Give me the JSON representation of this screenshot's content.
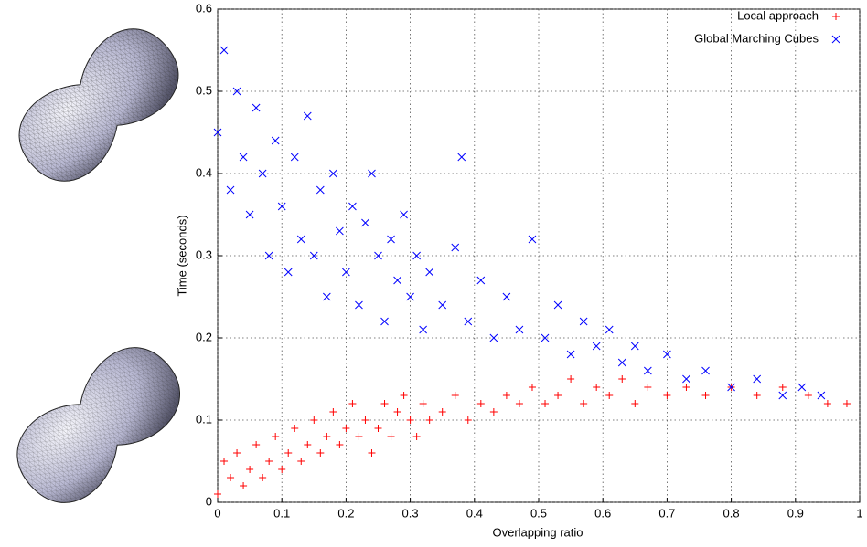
{
  "chart_data": {
    "type": "scatter",
    "xlabel": "Overlapping ratio",
    "ylabel": "Time (seconds)",
    "xlim": [
      0,
      1
    ],
    "ylim": [
      0,
      0.6
    ],
    "xticks": [
      0,
      0.1,
      0.2,
      0.3,
      0.4,
      0.5,
      0.6,
      0.7,
      0.8,
      0.9,
      1
    ],
    "yticks": [
      0,
      0.1,
      0.2,
      0.3,
      0.4,
      0.5,
      0.6
    ],
    "grid": true,
    "legend": "upper right",
    "series": [
      {
        "name": "Local approach",
        "color": "#ff0000",
        "marker": "+",
        "x": [
          0,
          0.01,
          0.02,
          0.03,
          0.04,
          0.05,
          0.06,
          0.07,
          0.08,
          0.09,
          0.1,
          0.11,
          0.12,
          0.13,
          0.14,
          0.15,
          0.16,
          0.17,
          0.18,
          0.19,
          0.2,
          0.21,
          0.22,
          0.23,
          0.24,
          0.25,
          0.26,
          0.27,
          0.28,
          0.29,
          0.3,
          0.31,
          0.32,
          0.33,
          0.35,
          0.37,
          0.39,
          0.41,
          0.43,
          0.45,
          0.47,
          0.49,
          0.51,
          0.53,
          0.55,
          0.57,
          0.59,
          0.61,
          0.63,
          0.65,
          0.67,
          0.7,
          0.73,
          0.76,
          0.8,
          0.84,
          0.88,
          0.92,
          0.95,
          0.98
        ],
        "values": [
          0.01,
          0.05,
          0.03,
          0.06,
          0.02,
          0.04,
          0.07,
          0.03,
          0.05,
          0.08,
          0.04,
          0.06,
          0.09,
          0.05,
          0.07,
          0.1,
          0.06,
          0.08,
          0.11,
          0.07,
          0.09,
          0.12,
          0.08,
          0.1,
          0.06,
          0.09,
          0.12,
          0.08,
          0.11,
          0.13,
          0.1,
          0.08,
          0.12,
          0.1,
          0.11,
          0.13,
          0.1,
          0.12,
          0.11,
          0.13,
          0.12,
          0.14,
          0.12,
          0.13,
          0.15,
          0.12,
          0.14,
          0.13,
          0.15,
          0.12,
          0.14,
          0.13,
          0.14,
          0.13,
          0.14,
          0.13,
          0.14,
          0.13,
          0.12,
          0.12
        ]
      },
      {
        "name": "Global Marching Cubes",
        "color": "#0000ff",
        "marker": "x",
        "x": [
          0,
          0.01,
          0.02,
          0.03,
          0.04,
          0.05,
          0.06,
          0.07,
          0.08,
          0.09,
          0.1,
          0.11,
          0.12,
          0.13,
          0.14,
          0.15,
          0.16,
          0.17,
          0.18,
          0.19,
          0.2,
          0.21,
          0.22,
          0.23,
          0.24,
          0.25,
          0.26,
          0.27,
          0.28,
          0.29,
          0.3,
          0.31,
          0.32,
          0.33,
          0.35,
          0.37,
          0.38,
          0.39,
          0.41,
          0.43,
          0.45,
          0.47,
          0.49,
          0.51,
          0.53,
          0.55,
          0.57,
          0.59,
          0.61,
          0.63,
          0.65,
          0.67,
          0.7,
          0.73,
          0.76,
          0.8,
          0.84,
          0.88,
          0.91,
          0.94
        ],
        "values": [
          0.45,
          0.55,
          0.38,
          0.5,
          0.42,
          0.35,
          0.48,
          0.4,
          0.3,
          0.44,
          0.36,
          0.28,
          0.42,
          0.32,
          0.47,
          0.3,
          0.38,
          0.25,
          0.4,
          0.33,
          0.28,
          0.36,
          0.24,
          0.34,
          0.4,
          0.3,
          0.22,
          0.32,
          0.27,
          0.35,
          0.25,
          0.3,
          0.21,
          0.28,
          0.24,
          0.31,
          0.42,
          0.22,
          0.27,
          0.2,
          0.25,
          0.21,
          0.32,
          0.2,
          0.24,
          0.18,
          0.22,
          0.19,
          0.21,
          0.17,
          0.19,
          0.16,
          0.18,
          0.15,
          0.16,
          0.14,
          0.15,
          0.13,
          0.14,
          0.13
        ]
      }
    ]
  }
}
